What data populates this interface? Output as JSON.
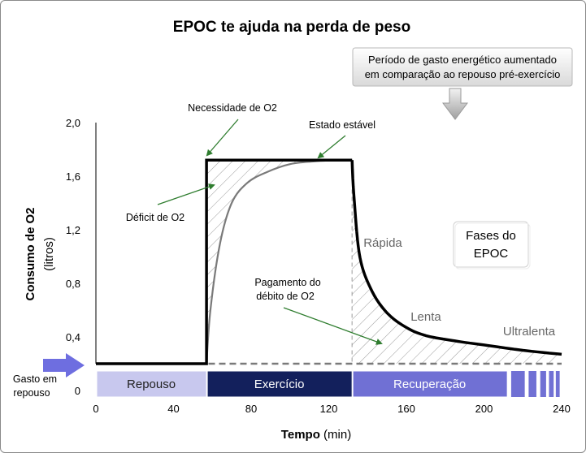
{
  "chart_data": {
    "type": "line",
    "title": "EPOC te ajuda na perda de peso",
    "xlabel_bold": "Tempo",
    "xlabel_rest": " (min)",
    "ylabel_main": "Consumo de O2",
    "ylabel_unit": "(litros)",
    "x_ticks": [
      "0",
      "40",
      "80",
      "120",
      "160",
      "200",
      "240"
    ],
    "x_tick_values": [
      0,
      40,
      80,
      120,
      160,
      200,
      240
    ],
    "y_ticks": [
      "0",
      "0,4",
      "0,8",
      "1,2",
      "1,6",
      "2,0"
    ],
    "y_tick_values": [
      0,
      0.4,
      0.8,
      1.2,
      1.6,
      2.0
    ],
    "xlim": [
      0,
      240
    ],
    "ylim": [
      0,
      2.0
    ],
    "grid": false,
    "series": [
      {
        "role": "oxygen-requirement",
        "x": [
          0,
          57,
          57,
          132,
          132
        ],
        "y": [
          0.2,
          0.2,
          1.72,
          1.72,
          0.2
        ],
        "color": "#000000"
      },
      {
        "role": "oxygen-consumption",
        "x": [
          0,
          57,
          59,
          64,
          70,
          78,
          88,
          100,
          112,
          125,
          132,
          133,
          136,
          142,
          150,
          160,
          170,
          185,
          200,
          220,
          240
        ],
        "y": [
          0.2,
          0.2,
          0.6,
          1.1,
          1.4,
          1.55,
          1.63,
          1.69,
          1.71,
          1.72,
          1.72,
          1.45,
          1.0,
          0.75,
          0.58,
          0.47,
          0.41,
          0.37,
          0.34,
          0.3,
          0.27
        ],
        "color": "#000000"
      }
    ],
    "resting_level": 0.2,
    "annotations": {
      "necessidade": "Necessidade de O2",
      "estado": "Estado estável",
      "deficit": "Déficit de O2",
      "pagamento_1": "Pagamento do",
      "pagamento_2": "débito de O2",
      "rapida": "Rápida",
      "lenta": "Lenta",
      "ultralenta": "Ultralenta",
      "fases_1": "Fases do",
      "fases_2": "EPOC",
      "box_1": "Período de gasto energético aumentado",
      "box_2": "em comparação ao repouso pré-exercício",
      "gasto_1": "Gasto em",
      "gasto_2": "repouso"
    },
    "bands": [
      {
        "label": "Repouso",
        "x0": 0,
        "x1": 57,
        "fill": "#c8c8ee",
        "text_color": "#222222"
      },
      {
        "label": "Exercício",
        "x0": 57,
        "x1": 132,
        "fill": "#13205c",
        "text_color": "#ffffff"
      },
      {
        "label": "Recuperação",
        "x0": 132,
        "x1": 212,
        "fill": "#7070d4",
        "text_color": "#ffffff"
      }
    ],
    "colors": {
      "arrow_green": "#2f7d2f",
      "arrow_blue": "#6e6ee0",
      "dashed": "#7a7a7a",
      "hatch": "#9a9a9a"
    }
  }
}
